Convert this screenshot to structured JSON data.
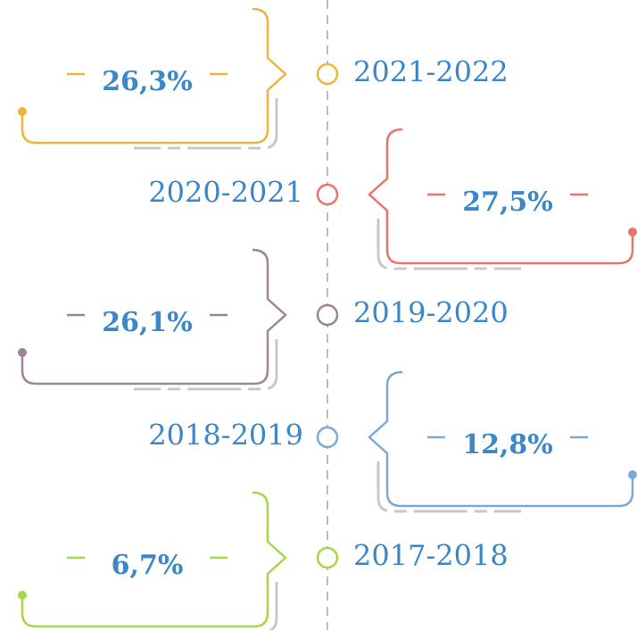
{
  "items": [
    {
      "period": "2021-2022",
      "value": "26,3%",
      "color": "#f0b43c"
    },
    {
      "period": "2020-2021",
      "value": "27,5%",
      "color": "#e8756a"
    },
    {
      "period": "2019-2020",
      "value": "26,1%",
      "color": "#9e8499"
    },
    {
      "period": "2018-2019",
      "value": "12,8%",
      "color": "#7aaad8"
    },
    {
      "period": "2017-2018",
      "value": "6,7%",
      "color": "#a6d64a"
    }
  ]
}
